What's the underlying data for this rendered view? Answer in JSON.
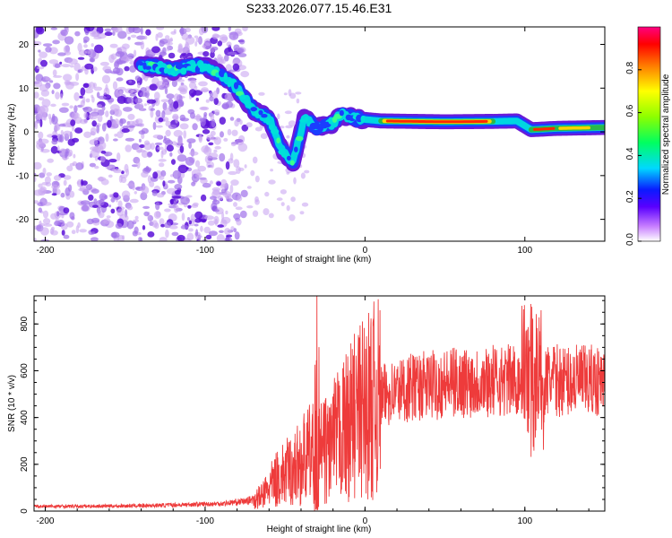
{
  "title": "S233.2026.077.15.46.E31",
  "chart_data": [
    {
      "type": "heatmap",
      "title": "S233.2026.077.15.46.E31",
      "xlabel": "Height of straight line (km)",
      "ylabel": "Frequency (Hz)",
      "xlim": [
        -207,
        150
      ],
      "ylim": [
        -25,
        24
      ],
      "xticks": [
        -200,
        -100,
        0,
        100
      ],
      "yticks": [
        -20,
        -10,
        0,
        10,
        20
      ],
      "colorbar": {
        "label": "Normalized spectral amplitude",
        "range": [
          0,
          1
        ],
        "ticks": [
          "0.0",
          "0.2",
          "0.4",
          "0.6",
          "0.8"
        ]
      },
      "ridge": [
        {
          "x": -140,
          "y": 15
        },
        {
          "x": -130,
          "y": 15
        },
        {
          "x": -120,
          "y": 14
        },
        {
          "x": -110,
          "y": 15
        },
        {
          "x": -100,
          "y": 15
        },
        {
          "x": -90,
          "y": 13
        },
        {
          "x": -80,
          "y": 10
        },
        {
          "x": -70,
          "y": 5
        },
        {
          "x": -60,
          "y": 3
        },
        {
          "x": -52,
          "y": -4
        },
        {
          "x": -45,
          "y": -7
        },
        {
          "x": -38,
          "y": 3
        },
        {
          "x": -30,
          "y": 1
        },
        {
          "x": -20,
          "y": 2
        },
        {
          "x": -15,
          "y": 4
        },
        {
          "x": -5,
          "y": 3
        },
        {
          "x": 10,
          "y": 2.5
        },
        {
          "x": 50,
          "y": 2.3
        },
        {
          "x": 80,
          "y": 2.4
        },
        {
          "x": 95,
          "y": 2.5
        },
        {
          "x": 104,
          "y": 0.5
        },
        {
          "x": 120,
          "y": 0.8
        },
        {
          "x": 150,
          "y": 1
        }
      ]
    },
    {
      "type": "line",
      "xlabel": "Height of straight line (km)",
      "ylabel": "SNR (10 * v/v)",
      "xlim": [
        -207,
        150
      ],
      "ylim": [
        0,
        920
      ],
      "xticks": [
        -200,
        -100,
        0,
        100
      ],
      "yticks": [
        0,
        200,
        400,
        600,
        800
      ],
      "series": [
        {
          "name": "SNR",
          "color": "#ee3b3b",
          "envelope": [
            {
              "x": -207,
              "y": 20
            },
            {
              "x": -150,
              "y": 22
            },
            {
              "x": -120,
              "y": 26
            },
            {
              "x": -90,
              "y": 32
            },
            {
              "x": -75,
              "y": 42
            },
            {
              "x": -65,
              "y": 60
            },
            {
              "x": -55,
              "y": 140
            },
            {
              "x": -45,
              "y": 180
            },
            {
              "x": -35,
              "y": 240
            },
            {
              "x": -25,
              "y": 260
            },
            {
              "x": -15,
              "y": 330
            },
            {
              "x": -5,
              "y": 420
            },
            {
              "x": 5,
              "y": 470
            },
            {
              "x": 15,
              "y": 505
            },
            {
              "x": 30,
              "y": 530
            },
            {
              "x": 50,
              "y": 545
            },
            {
              "x": 70,
              "y": 555
            },
            {
              "x": 90,
              "y": 560
            },
            {
              "x": 110,
              "y": 560
            },
            {
              "x": 130,
              "y": 558
            },
            {
              "x": 150,
              "y": 555
            }
          ],
          "peaks": [
            {
              "x": -30,
              "y": 810
            },
            {
              "x": 102,
              "y": 920
            },
            {
              "x": 108,
              "y": 860
            }
          ]
        }
      ]
    }
  ]
}
